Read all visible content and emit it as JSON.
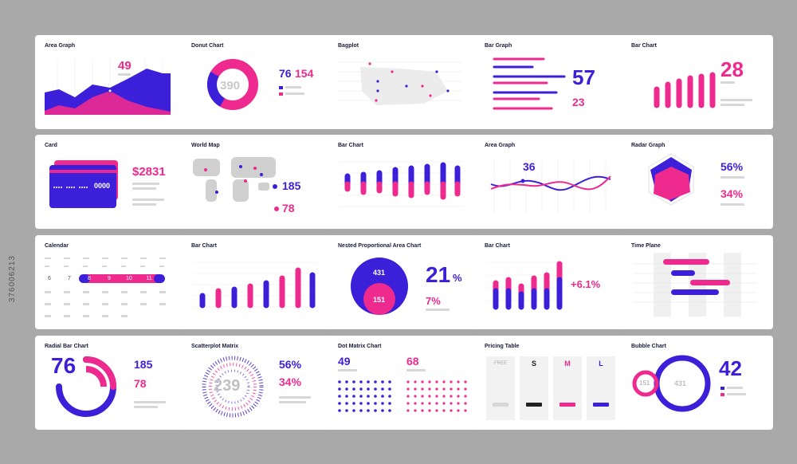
{
  "colors": {
    "purple": "#3b1fd9",
    "magenta": "#ee2a8f",
    "grey": "#d7d7d7"
  },
  "stock_id": "376006213",
  "cards": {
    "area_graph_1": {
      "title": "Area Graph",
      "value": "49"
    },
    "donut": {
      "title": "Donut Chart",
      "center": "390",
      "v1": "76",
      "v2": "154"
    },
    "bagplot": {
      "title": "Bagplot"
    },
    "bar_graph": {
      "title": "Bar Graph",
      "v1": "57",
      "v2": "23"
    },
    "bar_chart_1": {
      "title": "Bar Chart",
      "value": "28"
    },
    "card": {
      "title": "Card",
      "value": "$2831",
      "number": "0000"
    },
    "world_map": {
      "title": "World Map",
      "v1": "185",
      "v2": "78"
    },
    "bar_chart_2": {
      "title": "Bar Chart"
    },
    "area_graph_2": {
      "title": "Area Graph",
      "value": "36"
    },
    "radar": {
      "title": "Radar Graph",
      "v1": "56%",
      "v2": "34%"
    },
    "calendar": {
      "title": "Calendar",
      "row1": [
        "6",
        "7",
        "8",
        "9",
        "10",
        "11",
        "12"
      ]
    },
    "bar_chart_3": {
      "title": "Bar Chart"
    },
    "nested": {
      "title": "Nested Proportional Area Chart",
      "outer": "431",
      "inner": "151",
      "v1": "21",
      "v1_unit": "%",
      "v2": "7%"
    },
    "bar_chart_4": {
      "title": "Bar Chart",
      "value": "+6.1%"
    },
    "time_plane": {
      "title": "Time Plane"
    },
    "radial_bar": {
      "title": "Radial Bar Chart",
      "center": "76",
      "v1": "185",
      "v2": "78"
    },
    "scatter_matrix": {
      "title": "Scatterplot Matrix",
      "center": "239",
      "v1": "56%",
      "v2": "34%"
    },
    "dot_matrix": {
      "title": "Dot Matrix Chart",
      "v1": "49",
      "v2": "68"
    },
    "pricing": {
      "title": "Pricing Table",
      "plans": [
        "FREE",
        "S",
        "M",
        "L"
      ]
    },
    "bubble": {
      "title": "Bubble Chart",
      "small": "151",
      "large": "431",
      "value": "42"
    }
  },
  "chart_data": [
    {
      "type": "area",
      "title": "Area Graph",
      "series": [
        {
          "values": [
            6,
            7,
            5,
            6,
            9,
            8,
            11,
            12,
            8
          ]
        },
        {
          "values": [
            1,
            2,
            1,
            4,
            6,
            3,
            2,
            1,
            1
          ]
        }
      ]
    },
    {
      "type": "pie",
      "title": "Donut Chart",
      "values": [
        76,
        154
      ]
    },
    {
      "type": "scatter",
      "title": "Bagplot"
    },
    {
      "type": "bar",
      "title": "Bar Graph",
      "series": [
        {
          "values": [
            80,
            55,
            95,
            40,
            70
          ]
        },
        {
          "values": [
            60,
            85,
            45,
            75,
            50
          ]
        }
      ]
    },
    {
      "type": "bar",
      "title": "Bar Chart",
      "values": [
        8,
        12,
        15,
        18,
        21,
        24
      ]
    },
    {
      "type": "bar",
      "title": "Bar Chart",
      "series": [
        {
          "values": [
            30,
            35,
            40,
            45,
            55,
            50,
            60,
            50
          ]
        },
        {
          "values": [
            20,
            25,
            30,
            25,
            30,
            35,
            35,
            30
          ]
        }
      ]
    },
    {
      "type": "line",
      "title": "Area Graph",
      "series": [
        {
          "values": [
            5,
            4,
            6,
            8,
            5,
            3,
            6,
            9,
            7
          ]
        },
        {
          "values": [
            6,
            8,
            5,
            3,
            6,
            8,
            5,
            3,
            5
          ]
        }
      ]
    },
    {
      "type": "bar",
      "title": "Bar Chart",
      "values": [
        4,
        6,
        7,
        8,
        9,
        11,
        10
      ]
    },
    {
      "type": "bar",
      "title": "Bar Chart",
      "series": [
        {
          "values": [
            30,
            40,
            35,
            45,
            50,
            70
          ]
        },
        {
          "values": [
            20,
            25,
            20,
            30,
            30,
            45
          ]
        }
      ]
    }
  ]
}
